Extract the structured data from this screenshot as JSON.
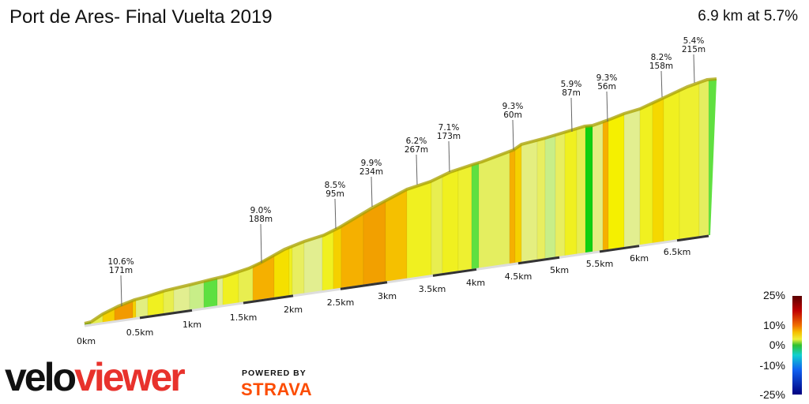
{
  "title": "Port de Ares- Final Vuelta 2019",
  "summary": "6.9 km at 5.7%",
  "chart_data": {
    "type": "area",
    "subtype": "3d-gradient-profile",
    "total_distance_km": 6.9,
    "avg_gradient_pct": 5.7,
    "x_ticks": [
      "0km",
      "0.5km",
      "1km",
      "1.5km",
      "2km",
      "2.5km",
      "3km",
      "3.5km",
      "4km",
      "4.5km",
      "5km",
      "5.5km",
      "6km",
      "6.5km"
    ],
    "annotations": [
      {
        "gradient": "10.6%",
        "length": "171m"
      },
      {
        "gradient": "9.0%",
        "length": "188m"
      },
      {
        "gradient": "8.5%",
        "length": "95m"
      },
      {
        "gradient": "9.9%",
        "length": "234m"
      },
      {
        "gradient": "6.2%",
        "length": "267m"
      },
      {
        "gradient": "7.1%",
        "length": "173m"
      },
      {
        "gradient": "9.3%",
        "length": "60m"
      },
      {
        "gradient": "5.9%",
        "length": "87m"
      },
      {
        "gradient": "9.3%",
        "length": "56m"
      },
      {
        "gradient": "8.2%",
        "length": "158m"
      },
      {
        "gradient": "5.4%",
        "length": "215m"
      }
    ],
    "legend": {
      "labels": [
        "25%",
        "10%",
        "0%",
        "-10%",
        "-25%"
      ],
      "colors": {
        "steep": "#5a0000",
        "hard": "#f07000",
        "moderate": "#eef03a",
        "flat": "#30c030",
        "down": "#1060f0"
      }
    }
  },
  "branding": {
    "logo_a": "velo",
    "logo_b": "viewer",
    "powered_by": "POWERED BY",
    "strava": "STRAVA",
    "colors": {
      "viewer": "#e8322c",
      "strava": "#fc4c02"
    }
  }
}
